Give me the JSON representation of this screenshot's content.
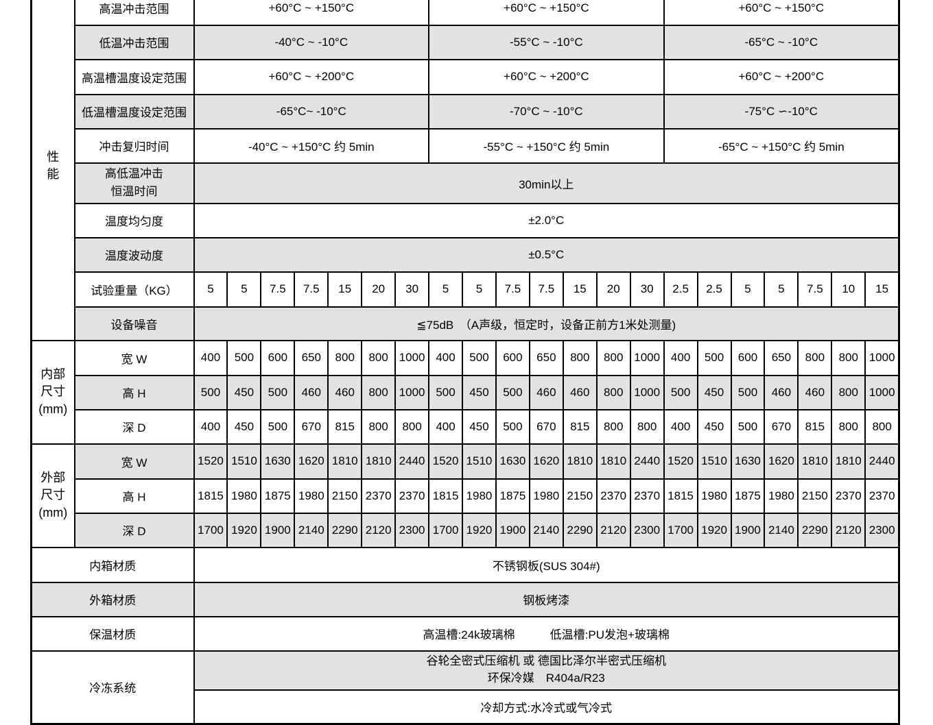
{
  "colors": {
    "row_alt": "#e2e2e2",
    "border": "#000000",
    "text": "#000000"
  },
  "table": {
    "category_performance": "性\n能",
    "category_internal": "内部\n尺寸\n(mm)",
    "category_external": "外部\n尺寸\n(mm)",
    "high_temp_shock": {
      "label": "高温冲击范围",
      "values": [
        "+60°C ~ +150°C",
        "+60°C ~ +150°C",
        "+60°C ~ +150°C"
      ]
    },
    "low_temp_shock": {
      "label": "低温冲击范围",
      "values": [
        "-40°C ~ -10°C",
        "-55°C ~ -10°C",
        "-65°C ~ -10°C"
      ]
    },
    "high_tank_set_range": {
      "label": "高温槽温度设定范围",
      "values": [
        "+60°C ~ +200°C",
        "+60°C ~ +200°C",
        "+60°C ~ +200°C"
      ]
    },
    "low_tank_set_range": {
      "label": "低温槽温度设定范围",
      "values": [
        "-65°C~ -10°C",
        "-70°C ~ -10°C",
        "-75°C ∽-10°C"
      ]
    },
    "shock_recovery_time": {
      "label": "冲击复归时间",
      "values": [
        "-40°C ~ +150°C 约 5min",
        "-55°C ~ +150°C 约 5min",
        "-65°C ~ +150°C 约 5min"
      ]
    },
    "dwell_time": {
      "label": "高低温冲击\n恒温时间",
      "value": "30min以上"
    },
    "uniformity": {
      "label": "温度均匀度",
      "value": "±2.0°C"
    },
    "fluctuation": {
      "label": "温度波动度",
      "value": "±0.5°C"
    },
    "test_weight": {
      "label": "试验重量（KG）",
      "values": [
        "5",
        "5",
        "7.5",
        "7.5",
        "15",
        "20",
        "30",
        "5",
        "5",
        "7.5",
        "7.5",
        "15",
        "20",
        "30",
        "2.5",
        "2.5",
        "5",
        "5",
        "7.5",
        "10",
        "15"
      ]
    },
    "noise": {
      "label": "设备噪音",
      "value": "≦75dB　（A声级，恒定时，设备正前方1米处测量)"
    },
    "internal_dims": {
      "width": {
        "label": "宽 W",
        "values": [
          "400",
          "500",
          "600",
          "650",
          "800",
          "800",
          "1000",
          "400",
          "500",
          "600",
          "650",
          "800",
          "800",
          "1000",
          "400",
          "500",
          "600",
          "650",
          "800",
          "800",
          "1000"
        ]
      },
      "height": {
        "label": "高 H",
        "values": [
          "500",
          "450",
          "500",
          "460",
          "460",
          "800",
          "1000",
          "500",
          "450",
          "500",
          "460",
          "460",
          "800",
          "1000",
          "500",
          "450",
          "500",
          "460",
          "460",
          "800",
          "1000"
        ]
      },
      "depth": {
        "label": "深 D",
        "values": [
          "400",
          "450",
          "500",
          "670",
          "815",
          "800",
          "800",
          "400",
          "450",
          "500",
          "670",
          "815",
          "800",
          "800",
          "400",
          "450",
          "500",
          "670",
          "815",
          "800",
          "800"
        ]
      }
    },
    "external_dims": {
      "width": {
        "label": "宽 W",
        "values": [
          "1520",
          "1510",
          "1630",
          "1620",
          "1810",
          "1810",
          "2440",
          "1520",
          "1510",
          "1630",
          "1620",
          "1810",
          "1810",
          "2440",
          "1520",
          "1510",
          "1630",
          "1620",
          "1810",
          "1810",
          "2440"
        ]
      },
      "height": {
        "label": "高 H",
        "values": [
          "1815",
          "1980",
          "1875",
          "1980",
          "2150",
          "2370",
          "2370",
          "1815",
          "1980",
          "1875",
          "1980",
          "2150",
          "2370",
          "2370",
          "1815",
          "1980",
          "1875",
          "1980",
          "2150",
          "2370",
          "2370"
        ]
      },
      "depth": {
        "label": "深 D",
        "values": [
          "1700",
          "1920",
          "1900",
          "2140",
          "2290",
          "2120",
          "2300",
          "1700",
          "1920",
          "1900",
          "2140",
          "2290",
          "2120",
          "2300",
          "1700",
          "1920",
          "1900",
          "2140",
          "2290",
          "2120",
          "2300"
        ]
      }
    },
    "inner_material": {
      "label": "内箱材质",
      "value": "不锈钢板(SUS 304#)"
    },
    "outer_material": {
      "label": "外箱材质",
      "value": "钢板烤漆"
    },
    "insulation": {
      "label": "保温材质",
      "value": "高温槽:24k玻璃棉　　　低温槽:PU发泡+玻璃棉"
    },
    "refrigeration": {
      "label": "冷冻系统",
      "compressor": "谷轮全密式压缩机 或 德国比泽尔半密式压缩机\n环保冷媒　R404a/R23",
      "cooling": "冷却方式:水冷式或气冷式"
    }
  }
}
